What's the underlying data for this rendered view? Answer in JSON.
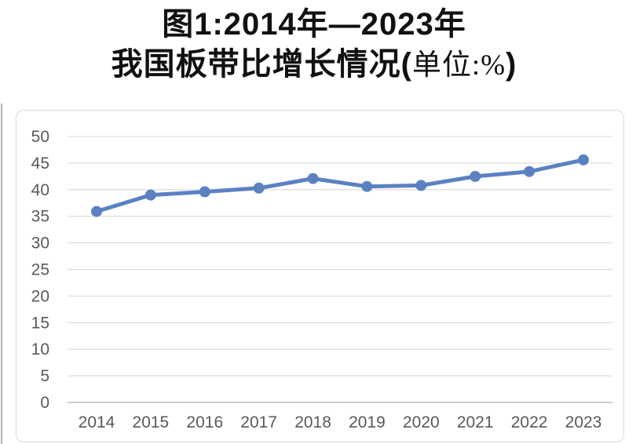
{
  "title": {
    "line1": "图1:2014年—2023年",
    "line2_main": "我国板带比增长情况(",
    "line2_unit": "单位:%",
    "line2_close": ")"
  },
  "chart_data": {
    "type": "line",
    "title": "图1:2014年—2023年我国板带比增长情况(单位:%)",
    "categories": [
      "2014",
      "2015",
      "2016",
      "2017",
      "2018",
      "2019",
      "2020",
      "2021",
      "2022",
      "2023"
    ],
    "values": [
      35.9,
      39.0,
      39.6,
      40.3,
      42.1,
      40.6,
      40.8,
      42.5,
      43.4,
      45.6
    ],
    "xlabel": "",
    "ylabel": "",
    "ylim": [
      0,
      50
    ],
    "yticks": [
      0,
      5,
      10,
      15,
      20,
      25,
      30,
      35,
      40,
      45,
      50
    ],
    "grid": true,
    "legend": false,
    "line_color": "#5b81c2",
    "marker_color": "#5b81c2",
    "grid_color": "#d9d9d9",
    "axis_color": "#bcbcbc",
    "tick_label_color": "#595959"
  }
}
